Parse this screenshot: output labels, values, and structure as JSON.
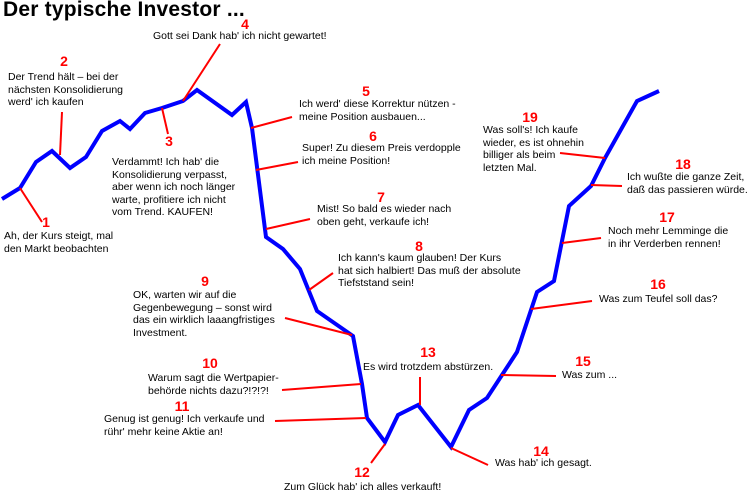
{
  "title": "Der typische Investor ...",
  "colors": {
    "line": "#0000ff",
    "leader": "#ff0000",
    "number": "#ff0000"
  },
  "annotations": [
    {
      "n": "1",
      "text": "Ah, der Kurs steigt, mal\nden Markt beobachten"
    },
    {
      "n": "2",
      "text": "Der Trend hält – bei der\nnächsten Konsolidierung\nwerd' ich kaufen"
    },
    {
      "n": "3",
      "text": "Verdammt! Ich hab' die\nKonsolidierung verpasst,\naber wenn ich noch länger\nwarte, profitiere ich nicht\nvom Trend. KAUFEN!"
    },
    {
      "n": "4",
      "text": "Gott sei Dank hab' ich nicht gewartet!"
    },
    {
      "n": "5",
      "text": "Ich werd' diese Korrektur nützen -\nmeine Position ausbauen..."
    },
    {
      "n": "6",
      "text": "Super! Zu diesem Preis verdopple\nich meine Position!"
    },
    {
      "n": "7",
      "text": "Mist! So bald es wieder nach\noben geht, verkaufe ich!"
    },
    {
      "n": "8",
      "text": "Ich kann's kaum glauben! Der Kurs\nhat sich halbiert! Das muß der absolute\nTiefststand sein!"
    },
    {
      "n": "9",
      "text": "OK, warten wir auf die\nGegenbewegung – sonst wird\ndas ein wirklich laaangfristiges\nInvestment."
    },
    {
      "n": "10",
      "text": "Warum sagt die Wertpapier-\nbehörde nichts dazu?!?!?!"
    },
    {
      "n": "11",
      "text": "Genug ist genug! Ich verkaufe und\nrühr' mehr keine Aktie an!"
    },
    {
      "n": "12",
      "text": "Zum Glück hab' ich alles verkauft!"
    },
    {
      "n": "13",
      "text": "Es wird trotzdem abstürzen."
    },
    {
      "n": "14",
      "text": "Was hab' ich gesagt."
    },
    {
      "n": "15",
      "text": "Was zum ..."
    },
    {
      "n": "16",
      "text": "Was zum Teufel soll das?"
    },
    {
      "n": "17",
      "text": "Noch mehr Lemminge die\nin ihr Verderben rennen!"
    },
    {
      "n": "18",
      "text": "Ich wußte die ganze Zeit,\ndaß das passieren würde."
    },
    {
      "n": "19",
      "text": "Was soll's! Ich kaufe\nwieder, es ist ohnehin\nbilliger als beim\nletzten Mal."
    }
  ]
}
